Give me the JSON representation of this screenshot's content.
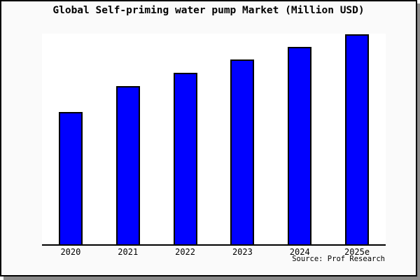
{
  "window": {
    "frame_background": "#fafafa",
    "frame_border_color": "#000000",
    "shadow_color": "#8a8a8a",
    "plot_background": "#ffffff"
  },
  "chart_data": {
    "type": "bar",
    "title": "Global Self-priming water pump Market (Million USD)",
    "categories": [
      "2020",
      "2021",
      "2022",
      "2023",
      "2024",
      "2025e"
    ],
    "values": [
      62.3,
      74.7,
      81.0,
      87.3,
      93.3,
      99.3
    ],
    "value_units": "relative bar height in % of plot height (chart shows no y-axis scale or value labels)",
    "xlabel": "",
    "ylabel": "",
    "ylim": [
      0,
      100
    ],
    "grid": false,
    "legend": false,
    "y_axis_shown": false,
    "bar_color": "#0000ff",
    "bar_border_color": "#000000",
    "source_note": "Source: Prof Research"
  }
}
